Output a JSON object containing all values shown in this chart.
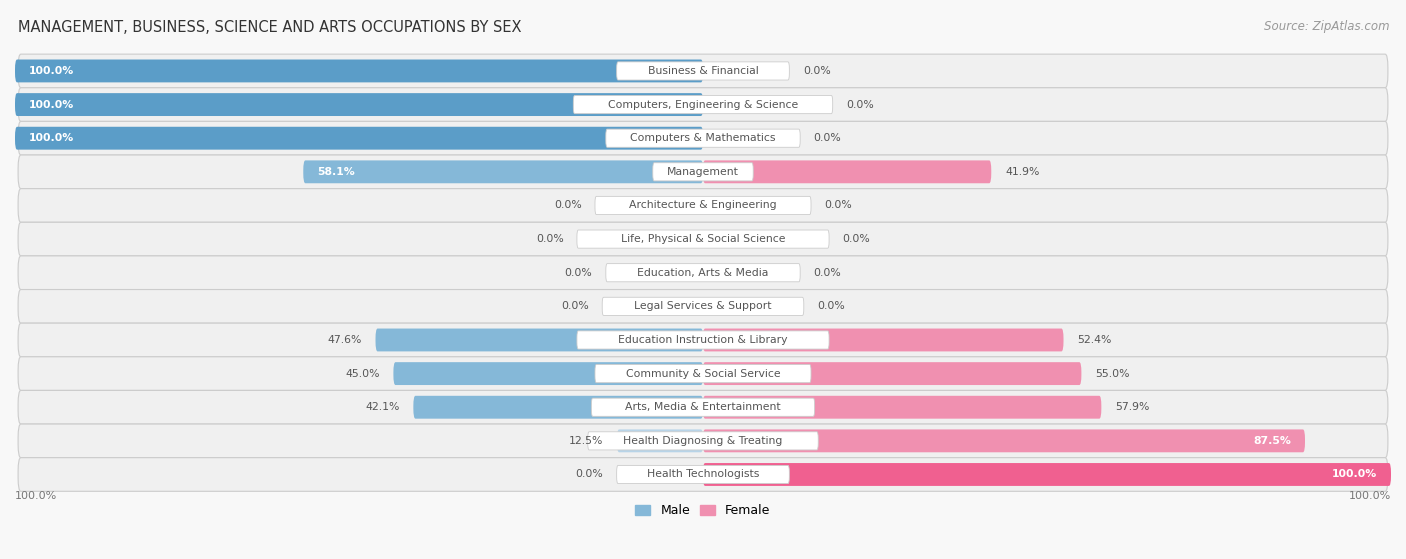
{
  "title": "MANAGEMENT, BUSINESS, SCIENCE AND ARTS OCCUPATIONS BY SEX",
  "source": "Source: ZipAtlas.com",
  "categories": [
    "Business & Financial",
    "Computers, Engineering & Science",
    "Computers & Mathematics",
    "Management",
    "Architecture & Engineering",
    "Life, Physical & Social Science",
    "Education, Arts & Media",
    "Legal Services & Support",
    "Education Instruction & Library",
    "Community & Social Service",
    "Arts, Media & Entertainment",
    "Health Diagnosing & Treating",
    "Health Technologists"
  ],
  "male": [
    100.0,
    100.0,
    100.0,
    58.1,
    0.0,
    0.0,
    0.0,
    0.0,
    47.6,
    45.0,
    42.1,
    12.5,
    0.0
  ],
  "female": [
    0.0,
    0.0,
    0.0,
    41.9,
    0.0,
    0.0,
    0.0,
    0.0,
    52.4,
    55.0,
    57.9,
    87.5,
    100.0
  ],
  "male_color_full": "#5b9dc8",
  "male_color_partial": "#85b8d8",
  "male_color_small": "#b8d4e8",
  "female_color_full": "#f06090",
  "female_color_partial": "#f090b0",
  "female_color_small": "#f5b8cc",
  "row_bg_color": "#f0f0f0",
  "bg_color": "#f8f8f8",
  "label_fg": "#555555",
  "title_color": "#333333",
  "source_color": "#999999",
  "bottom_label_color": "#777777"
}
